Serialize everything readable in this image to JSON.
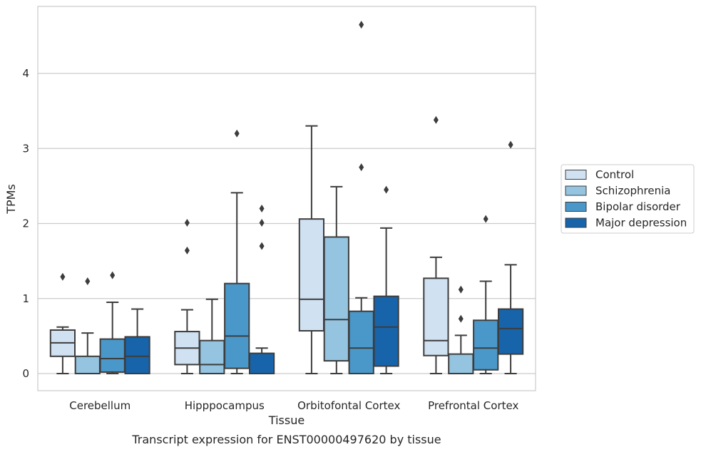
{
  "caption": "Transcript expression for ENST00000497620 by tissue",
  "chart_data": {
    "type": "box",
    "xlabel": "Tissue",
    "ylabel": "TPMs",
    "ylim": [
      -0.22,
      4.9
    ],
    "yticks": [
      0,
      1,
      2,
      3,
      4
    ],
    "grid": "horizontal",
    "legend_position": "right",
    "categories": [
      "Cerebellum",
      "Hipppocampus",
      "Orbitofontal Cortex",
      "Prefrontal Cortex"
    ],
    "series": [
      {
        "name": "Control",
        "color": "#d0e1f2",
        "boxes": [
          {
            "whislo": 0.0,
            "q1": 0.23,
            "med": 0.41,
            "q3": 0.58,
            "whishi": 0.62,
            "fliers": [
              1.29
            ]
          },
          {
            "whislo": 0.0,
            "q1": 0.12,
            "med": 0.34,
            "q3": 0.56,
            "whishi": 0.85,
            "fliers": [
              1.64,
              2.01
            ]
          },
          {
            "whislo": 0.0,
            "q1": 0.57,
            "med": 0.99,
            "q3": 2.06,
            "whishi": 3.3,
            "fliers": []
          },
          {
            "whislo": 0.0,
            "q1": 0.24,
            "med": 0.44,
            "q3": 1.27,
            "whishi": 1.55,
            "fliers": [
              3.38
            ]
          }
        ]
      },
      {
        "name": "Schizophrenia",
        "color": "#94c4df",
        "boxes": [
          {
            "whislo": 0.0,
            "q1": 0.0,
            "med": 0.0,
            "q3": 0.23,
            "whishi": 0.54,
            "fliers": [
              1.23
            ]
          },
          {
            "whislo": 0.0,
            "q1": 0.0,
            "med": 0.12,
            "q3": 0.44,
            "whishi": 0.99,
            "fliers": []
          },
          {
            "whislo": 0.0,
            "q1": 0.17,
            "med": 0.72,
            "q3": 1.82,
            "whishi": 2.49,
            "fliers": []
          },
          {
            "whislo": 0.0,
            "q1": 0.0,
            "med": 0.0,
            "q3": 0.26,
            "whishi": 0.51,
            "fliers": [
              0.73,
              1.12
            ]
          }
        ]
      },
      {
        "name": "Bipolar disorder",
        "color": "#4a98c9",
        "boxes": [
          {
            "whislo": 0.0,
            "q1": 0.02,
            "med": 0.2,
            "q3": 0.46,
            "whishi": 0.95,
            "fliers": [
              1.31
            ]
          },
          {
            "whislo": 0.0,
            "q1": 0.07,
            "med": 0.5,
            "q3": 1.2,
            "whishi": 2.41,
            "fliers": [
              3.2
            ]
          },
          {
            "whislo": 0.0,
            "q1": 0.0,
            "med": 0.34,
            "q3": 0.83,
            "whishi": 1.01,
            "fliers": [
              2.75,
              4.65
            ]
          },
          {
            "whislo": 0.0,
            "q1": 0.05,
            "med": 0.34,
            "q3": 0.71,
            "whishi": 1.23,
            "fliers": [
              2.06
            ]
          }
        ]
      },
      {
        "name": "Major depression",
        "color": "#1764ab",
        "boxes": [
          {
            "whislo": 0.0,
            "q1": 0.0,
            "med": 0.23,
            "q3": 0.49,
            "whishi": 0.86,
            "fliers": []
          },
          {
            "whislo": 0.0,
            "q1": 0.0,
            "med": 0.0,
            "q3": 0.27,
            "whishi": 0.34,
            "fliers": [
              1.7,
              2.01,
              2.2
            ]
          },
          {
            "whislo": 0.0,
            "q1": 0.1,
            "med": 0.62,
            "q3": 1.03,
            "whishi": 1.94,
            "fliers": [
              2.45
            ]
          },
          {
            "whislo": 0.0,
            "q1": 0.26,
            "med": 0.6,
            "q3": 0.86,
            "whishi": 1.45,
            "fliers": [
              3.05
            ]
          }
        ]
      }
    ]
  }
}
